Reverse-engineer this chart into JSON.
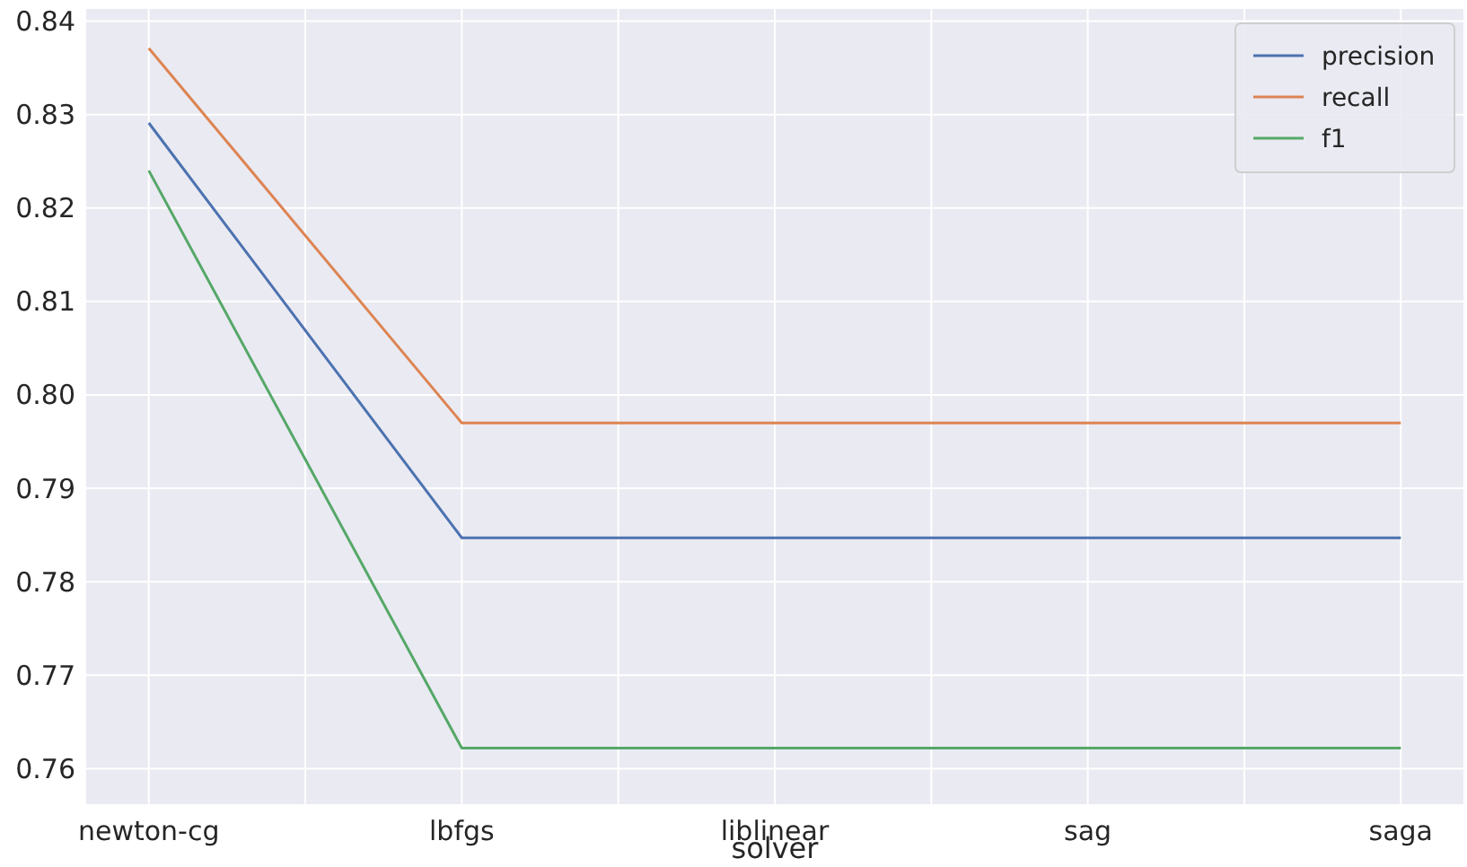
{
  "chart_data": {
    "type": "line",
    "xlabel": "solver",
    "categories": [
      "newton-cg",
      "lbfgs",
      "liblinear",
      "sag",
      "saga"
    ],
    "series": [
      {
        "name": "precision",
        "color": "#4c72b0",
        "values": [
          0.8291,
          0.7847,
          0.7847,
          0.7847,
          0.7847
        ]
      },
      {
        "name": "recall",
        "color": "#dd8452",
        "values": [
          0.8371,
          0.797,
          0.797,
          0.797,
          0.797
        ]
      },
      {
        "name": "f1",
        "color": "#55a868",
        "values": [
          0.824,
          0.7622,
          0.7622,
          0.7622,
          0.7622
        ]
      }
    ],
    "ylim": [
      0.7562,
      0.8413
    ],
    "yticks": [
      0.76,
      0.77,
      0.78,
      0.79,
      {
        "value": 0.8,
        "label": "0.80"
      },
      0.81,
      0.82,
      0.83,
      0.84
    ],
    "grid": true,
    "legend": "top right",
    "marker": "none",
    "line_style": "solid"
  }
}
